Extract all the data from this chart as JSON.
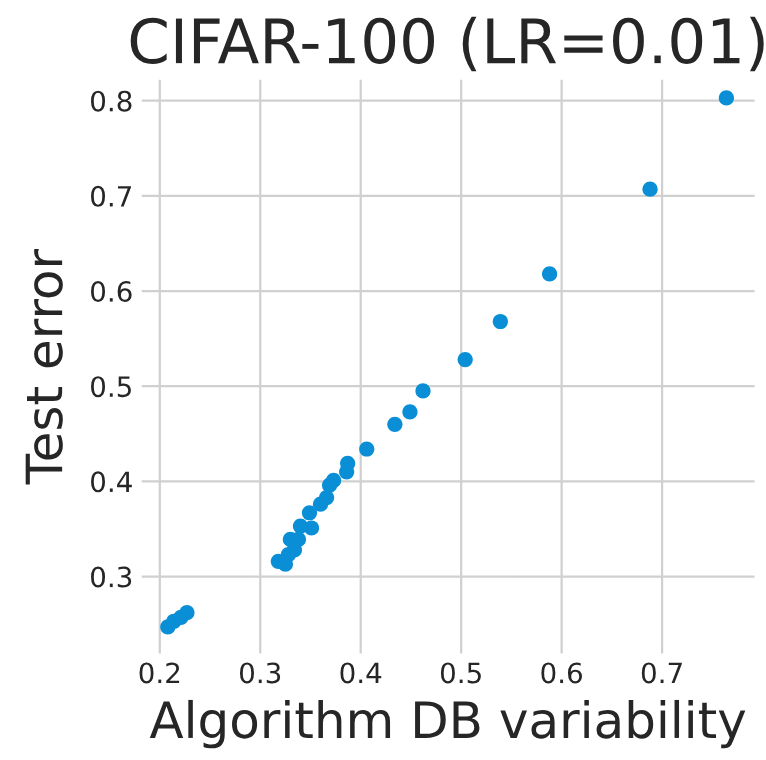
{
  "chart_data": {
    "type": "scatter",
    "title": "CIFAR-100 (LR=0.01)",
    "xlabel": "Algorithm DB variability",
    "ylabel": "Test error",
    "x": [
      0.764,
      0.688,
      0.588,
      0.539,
      0.504,
      0.462,
      0.449,
      0.434,
      0.406,
      0.387,
      0.386,
      0.373,
      0.369,
      0.366,
      0.36,
      0.349,
      0.351,
      0.34,
      0.338,
      0.33,
      0.334,
      0.328,
      0.318,
      0.325,
      0.208,
      0.214,
      0.221,
      0.227
    ],
    "series": [
      {
        "color": "#0a8fd6",
        "values": [
          0.803,
          0.707,
          0.618,
          0.568,
          0.528,
          0.495,
          0.473,
          0.46,
          0.434,
          0.419,
          0.41,
          0.401,
          0.396,
          0.383,
          0.376,
          0.367,
          0.351,
          0.353,
          0.339,
          0.339,
          0.328,
          0.323,
          0.316,
          0.313,
          0.247,
          0.253,
          0.257,
          0.262
        ]
      }
    ],
    "xlim": [
      0.182,
      0.792
    ],
    "ylim": [
      0.219,
      0.822
    ],
    "xticks": [
      0.2,
      0.3,
      0.4,
      0.5,
      0.6,
      0.7
    ],
    "yticks": [
      0.3,
      0.4,
      0.5,
      0.6,
      0.7,
      0.8
    ],
    "grid": true,
    "marker": "circle"
  }
}
